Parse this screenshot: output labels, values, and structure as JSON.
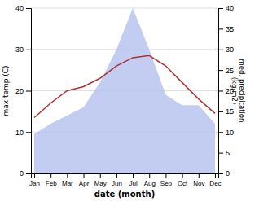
{
  "chart_data": {
    "type": "line",
    "categories": [
      "Jan",
      "Feb",
      "Mar",
      "Apr",
      "May",
      "Jun",
      "Jul",
      "Aug",
      "Sep",
      "Oct",
      "Nov",
      "Dec"
    ],
    "series": [
      {
        "type": "area",
        "color": "#b8c4f0",
        "axis": "y2",
        "values": [
          9.5,
          12.0,
          14.0,
          16.0,
          22.0,
          30.0,
          40.0,
          30.0,
          19.0,
          16.5,
          16.5,
          12.0
        ]
      },
      {
        "type": "line",
        "color": "#b03030",
        "values": [
          13.5,
          17.0,
          20.0,
          21.0,
          23.0,
          26.0,
          28.0,
          28.5,
          26.0,
          22.0,
          18.0,
          14.5
        ]
      }
    ],
    "xlabel": "date (month)",
    "ylabel": "max temp (C)",
    "y2label": "med. precipitation\n(kg/m2)",
    "ylim": [
      0,
      40
    ],
    "yticks": [
      0,
      10,
      20,
      30,
      40
    ],
    "y2lim": [
      0,
      40
    ],
    "y2ticks": [
      0,
      5,
      10,
      15,
      20,
      25,
      30,
      35,
      40
    ],
    "grid": true
  }
}
